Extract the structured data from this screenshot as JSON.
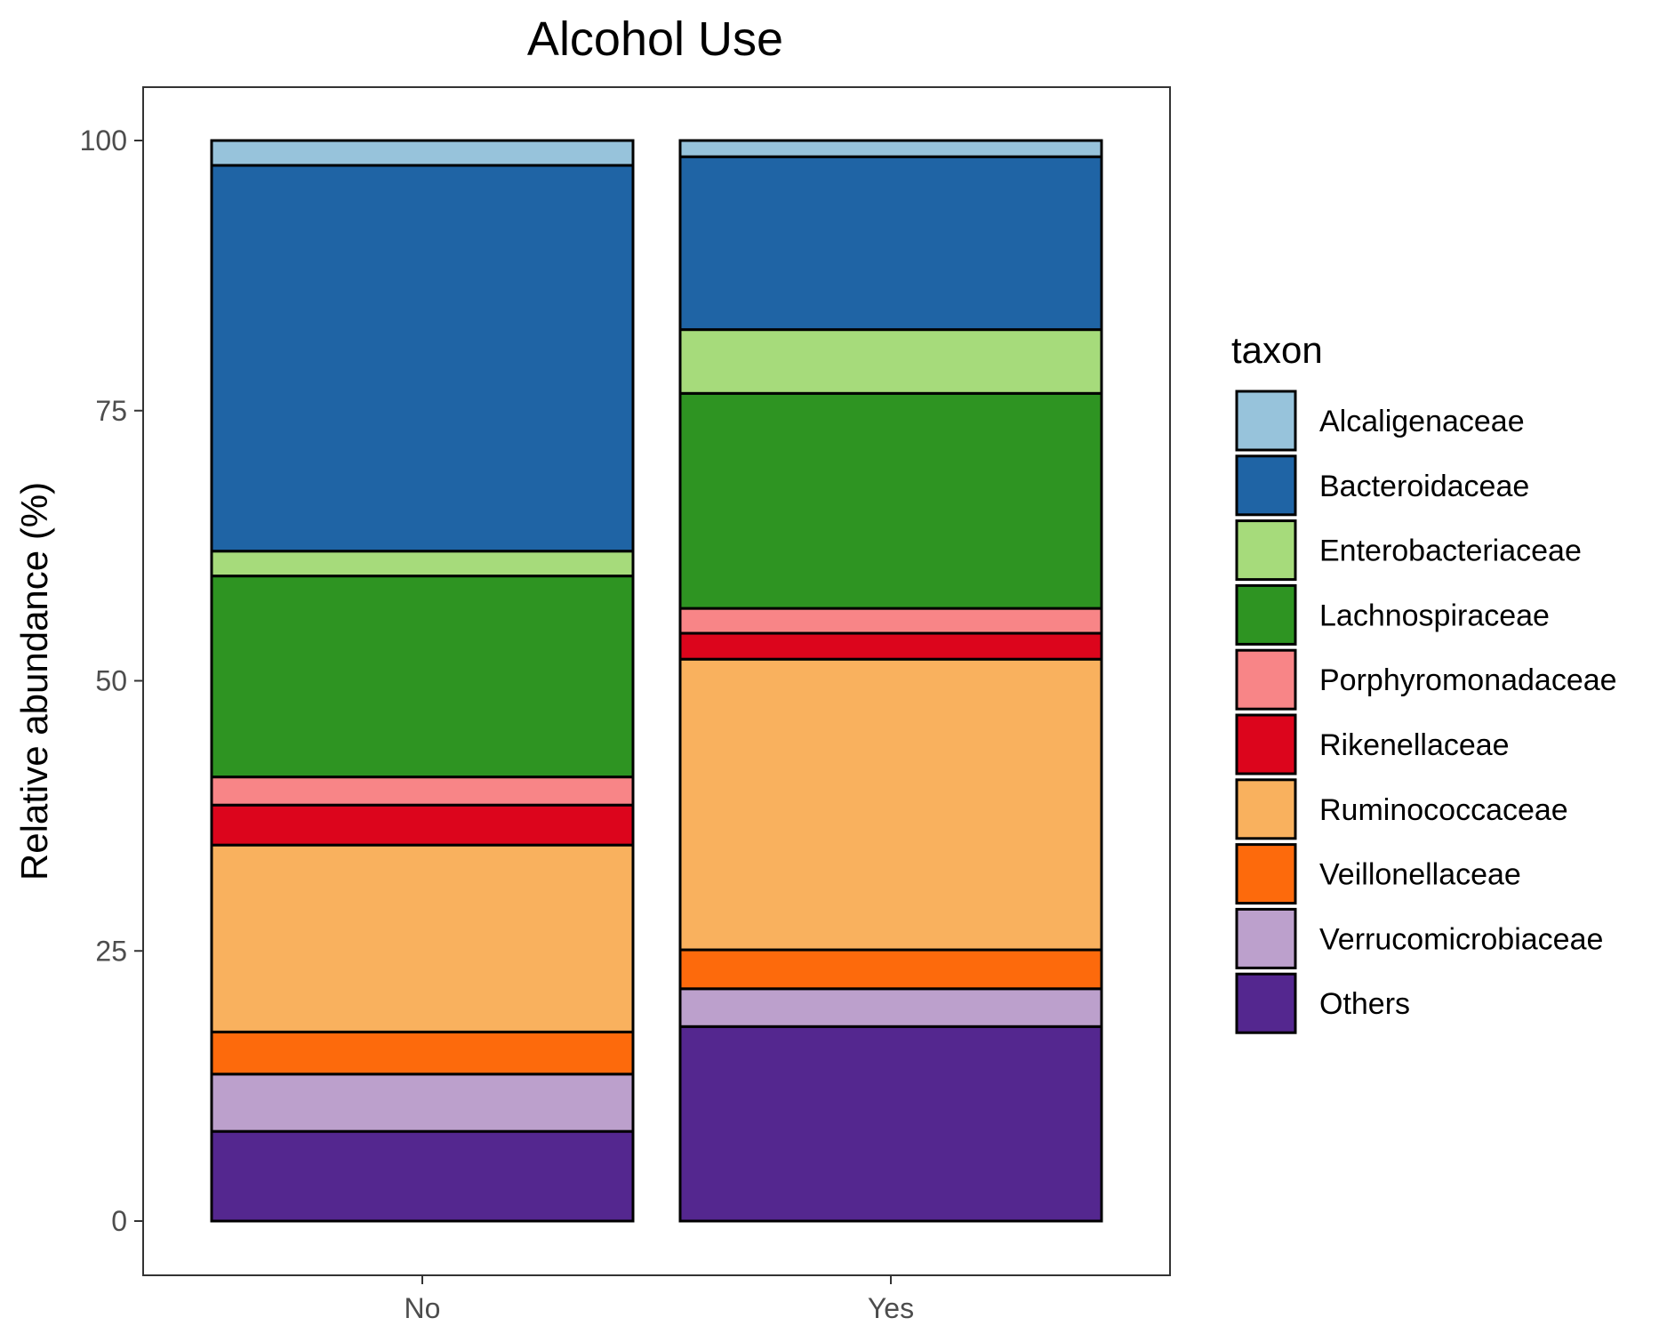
{
  "chart_data": {
    "type": "bar",
    "stacked": true,
    "title": "Alcohol Use",
    "xlabel": "",
    "ylabel": "Relative abundance (%)",
    "ylim": [
      -2.5,
      104.8
    ],
    "yticks": [
      0,
      25,
      50,
      75,
      100
    ],
    "categories": [
      "No",
      "Yes"
    ],
    "grid": false,
    "legend_title": "taxon",
    "legend_position": "right",
    "series": [
      {
        "name": "Others",
        "color": "#54278F",
        "values": [
          8.3,
          18.0
        ]
      },
      {
        "name": "Verrucomicrobiaceae",
        "color": "#BCA0CC",
        "values": [
          5.3,
          3.5
        ]
      },
      {
        "name": "Veillonellaceae",
        "color": "#FD6A0C",
        "values": [
          3.9,
          3.6
        ]
      },
      {
        "name": "Ruminococcaceae",
        "color": "#F9B15E",
        "values": [
          17.3,
          26.9
        ]
      },
      {
        "name": "Rikenellaceae",
        "color": "#DC051C",
        "values": [
          3.7,
          2.4
        ]
      },
      {
        "name": "Porphyromonadaceae",
        "color": "#F88587",
        "values": [
          2.6,
          2.3
        ]
      },
      {
        "name": "Lachnospiraceae",
        "color": "#2E9422",
        "values": [
          18.6,
          19.9
        ]
      },
      {
        "name": "Enterobacteriaceae",
        "color": "#A6DB7B",
        "values": [
          2.3,
          5.9
        ]
      },
      {
        "name": "Bacteroidaceae",
        "color": "#1F64A5",
        "values": [
          35.7,
          16.0
        ]
      },
      {
        "name": "Alcaligenaceae",
        "color": "#97C3DB",
        "values": [
          2.3,
          1.5
        ]
      }
    ],
    "legend_order": [
      "Alcaligenaceae",
      "Bacteroidaceae",
      "Enterobacteriaceae",
      "Lachnospiraceae",
      "Porphyromonadaceae",
      "Rikenellaceae",
      "Ruminococcaceae",
      "Veillonellaceae",
      "Verrucomicrobiaceae",
      "Others"
    ]
  }
}
